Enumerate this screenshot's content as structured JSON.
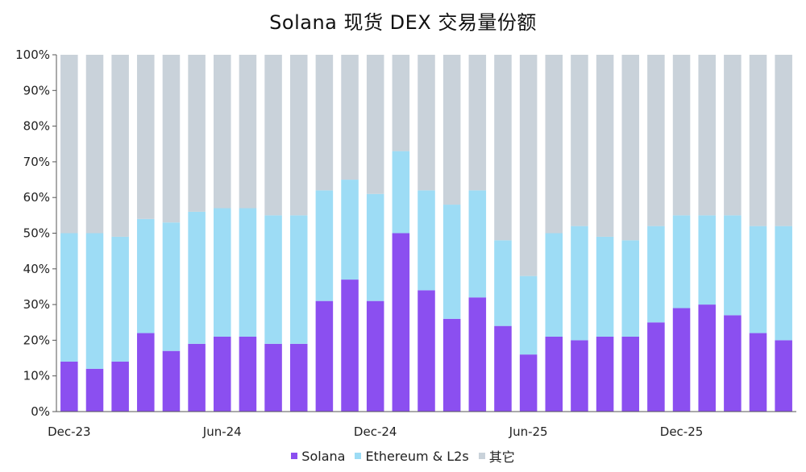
{
  "title": "Solana 现货 DEX 交易量份额",
  "colors": {
    "solana": "#8b4ff0",
    "ethereum": "#9ddcf5",
    "other": "#c9d2da",
    "axis": "#555555"
  },
  "chart_data": {
    "type": "bar",
    "stacked": true,
    "title": "Solana 现货 DEX 交易量份额",
    "ylim": [
      0,
      100
    ],
    "y_ticks": [
      "0%",
      "10%",
      "20%",
      "30%",
      "40%",
      "50%",
      "60%",
      "70%",
      "80%",
      "90%",
      "100%"
    ],
    "x_tick_labels": [
      {
        "index": 0,
        "label": "Dec-23"
      },
      {
        "index": 6,
        "label": "Jun-24"
      },
      {
        "index": 12,
        "label": "Dec-24"
      },
      {
        "index": 18,
        "label": "Jun-25"
      },
      {
        "index": 24,
        "label": "Dec-25"
      }
    ],
    "categories": [
      "Dec-23",
      "Jan-24",
      "Feb-24",
      "Mar-24",
      "Apr-24",
      "May-24",
      "Jun-24",
      "Jul-24",
      "Aug-24",
      "Sep-24",
      "Oct-24",
      "Nov-24",
      "Dec-24",
      "Jan-25",
      "Feb-25",
      "Mar-25",
      "Apr-25",
      "May-25",
      "Jun-25",
      "Jul-25",
      "Aug-25",
      "Sep-25",
      "Oct-25",
      "Nov-25",
      "Dec-25",
      "Jan-26",
      "Feb-26",
      "Mar-26",
      "Apr-26"
    ],
    "series": [
      {
        "name": "Solana",
        "values": [
          14,
          12,
          14,
          22,
          17,
          19,
          21,
          21,
          19,
          19,
          31,
          37,
          31,
          50,
          34,
          26,
          32,
          24,
          16,
          21,
          20,
          21,
          21,
          25,
          29,
          30,
          27,
          22,
          20
        ]
      },
      {
        "name": "Ethereum & L2s",
        "values": [
          36,
          38,
          35,
          32,
          36,
          37,
          36,
          36,
          36,
          36,
          31,
          28,
          30,
          23,
          28,
          32,
          30,
          24,
          22,
          29,
          32,
          28,
          27,
          27,
          26,
          25,
          28,
          30,
          32
        ]
      },
      {
        "name": "其它",
        "values": [
          50,
          50,
          51,
          46,
          47,
          44,
          43,
          43,
          45,
          45,
          38,
          35,
          39,
          27,
          38,
          42,
          38,
          52,
          62,
          50,
          48,
          51,
          52,
          48,
          45,
          45,
          45,
          48,
          48
        ]
      }
    ],
    "legend_position": "bottom",
    "grid": false
  }
}
